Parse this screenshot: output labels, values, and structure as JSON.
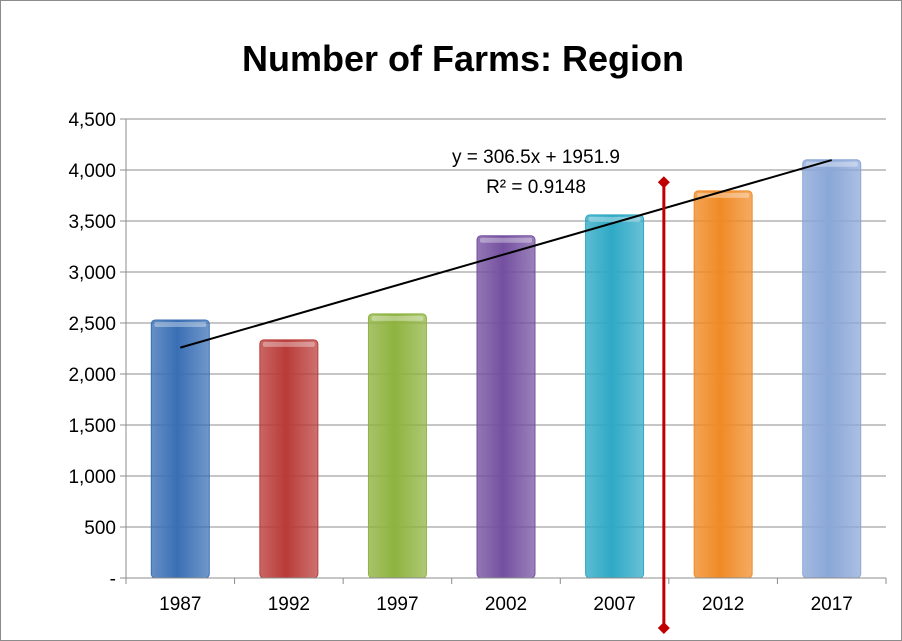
{
  "chart_data": {
    "type": "bar",
    "title": "Number of Farms: Region",
    "categories": [
      "1987",
      "1992",
      "1997",
      "2002",
      "2007",
      "2012",
      "2017"
    ],
    "values": [
      2530,
      2335,
      2590,
      3355,
      3560,
      3795,
      4100
    ],
    "colors": [
      "#3a6fb5",
      "#b93b38",
      "#8eb33f",
      "#7450a0",
      "#2ea9c6",
      "#f08a26",
      "#8aa7d8"
    ],
    "ylim": [
      0,
      4500
    ],
    "ytick_values": [
      0,
      500,
      1000,
      1500,
      2000,
      2500,
      3000,
      3500,
      4000,
      4500
    ],
    "ytick_labels": [
      "-",
      "500",
      "1,000",
      "1,500",
      "2,000",
      "2,500",
      "3,000",
      "3,500",
      "4,000",
      "4,500"
    ],
    "grid": true,
    "trendline": {
      "type": "linear",
      "slope": 306.5,
      "intercept": 1951.9,
      "equation_label": "y = 306.5x + 1951.9",
      "r2_label": "R² = 0.9148",
      "color": "#000000"
    },
    "marker_line": {
      "between_categories": [
        "2007",
        "2012"
      ],
      "color": "#c00000"
    }
  }
}
